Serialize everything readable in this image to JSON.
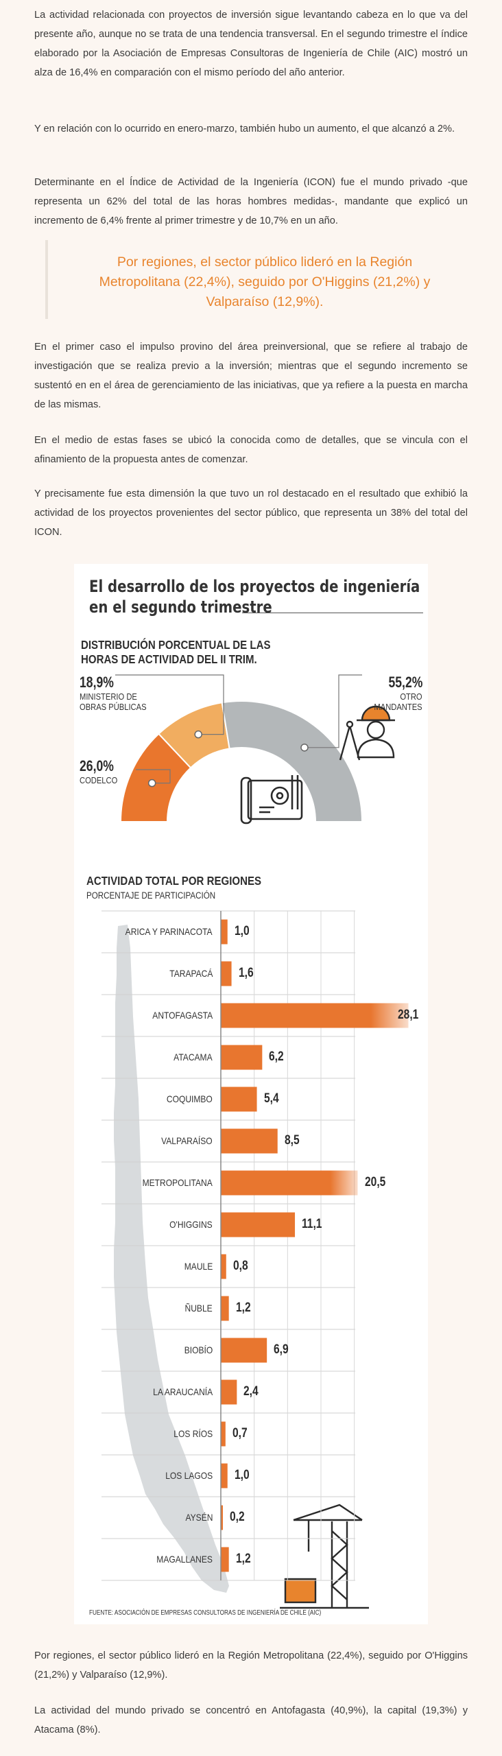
{
  "article": {
    "p1": "La actividad relacionada con proyectos de inversión sigue levantando cabeza en lo que va del presente año, aunque no se trata de una tendencia transversal. En el segundo trimestre el índice elaborado por la Asociación de Empresas Consultoras de Ingeniería de Chile (AIC) mostró un alza de 16,4% en comparación con el mismo período del año anterior.",
    "p2": "Y en relación con lo ocurrido en enero-marzo, también hubo un aumento, el que alcanzó a 2%.",
    "p3": "Determinante en el Índice de Actividad de la Ingeniería (ICON) fue el mundo privado -que representa un 62% del total de las horas hombres medidas-, mandante que explicó un incremento de 6,4% frente al primer trimestre y de 10,7% en un año.",
    "quote": "Por regiones, el sector público lideró en la Región Metropolitana (22,4%), seguido por O'Higgins (21,2%) y Valparaíso (12,9%).",
    "p4": "En el primer caso el impulso provino del área preinversional, que se refiere al trabajo de investigación que se realiza previo a la inversión; mientras que el segundo incremento se sustentó en en el área de gerenciamiento de las iniciativas, que ya refiere a la puesta en marcha de las mismas.",
    "p5": "En el medio de estas fases se ubicó la conocida como de detalles, que se vincula con el afinamiento de la propuesta antes de comenzar.",
    "p6": "Y precisamente fue esta dimensión la que tuvo un rol destacado en el resultado que exhibió la actividad de los proyectos provenientes del sector público, que representa un 38% del total del ICON.",
    "p7": "Por regiones, el sector público lideró en la Región Metropolitana (22,4%), seguido por O'Higgins (21,2%) y Valparaíso (12,9%).",
    "p8": "La actividad del mundo privado se concentró en Antofagasta (40,9%), la capital (19,3%) y Atacama (8%)."
  },
  "infographic": {
    "title_line1": "El desarrollo de los proyectos de ingeniería",
    "title_line2": "en el segundo trimestre",
    "source": "FUENTE: ASOCIACIÓN DE EMPRESAS CONSULTORAS DE INGENIERÍA DE CHILE (AIC)"
  },
  "colors": {
    "accent": "#e8842d",
    "orange_dark": "#e9762d",
    "orange_light": "#f1ad60",
    "gray": "#b3b7b9",
    "map": "#d8dbdd"
  },
  "icons": [
    "blueprint-gear-icon",
    "engineer-icon",
    "crane-icon",
    "chile-map-silhouette"
  ],
  "chart_data": [
    {
      "type": "pie",
      "variant": "half-donut",
      "title": "DISTRIBUCIÓN PORCENTUAL DE LAS HORAS DE ACTIVIDAD DEL II TRIM.",
      "slices": [
        {
          "label_line1": "CODELCO",
          "label_line2": "",
          "value": 26.0,
          "display": "26,0%",
          "color": "#e9762d"
        },
        {
          "label_line1": "MINISTERIO DE",
          "label_line2": "OBRAS PÚBLICAS",
          "value": 18.9,
          "display": "18,9%",
          "color": "#f1ad60"
        },
        {
          "label_line1": "OTRO",
          "label_line2": "MANDANTES",
          "value": 55.2,
          "display": "55,2%",
          "color": "#b3b7b9"
        }
      ]
    },
    {
      "type": "bar",
      "orientation": "horizontal",
      "title": "ACTIVIDAD TOTAL POR REGIONES",
      "subtitle": "PORCENTAJE DE PARTICIPACIÓN",
      "xlim": [
        0,
        30
      ],
      "grid": true,
      "categories": [
        "ARICA Y PARINACOTA",
        "TARAPACÁ",
        "ANTOFAGASTA",
        "ATACAMA",
        "COQUIMBO",
        "VALPARAÍSO",
        "METROPOLITANA",
        "O'HIGGINS",
        "MAULE",
        "ÑUBLE",
        "BIOBÍO",
        "LA ARAUCANÍA",
        "LOS RÍOS",
        "LOS LAGOS",
        "AYSÉN",
        "MAGALLANES"
      ],
      "values": [
        1.0,
        1.6,
        28.1,
        6.2,
        5.4,
        8.5,
        20.5,
        11.1,
        0.8,
        1.2,
        6.9,
        2.4,
        0.7,
        1.0,
        0.2,
        1.2
      ],
      "value_labels": [
        "1,0",
        "1,6",
        "28,1",
        "6,2",
        "5,4",
        "8,5",
        "20,5",
        "11,1",
        "0,8",
        "1,2",
        "6,9",
        "2,4",
        "0,7",
        "1,0",
        "0,2",
        "1,2"
      ]
    }
  ]
}
